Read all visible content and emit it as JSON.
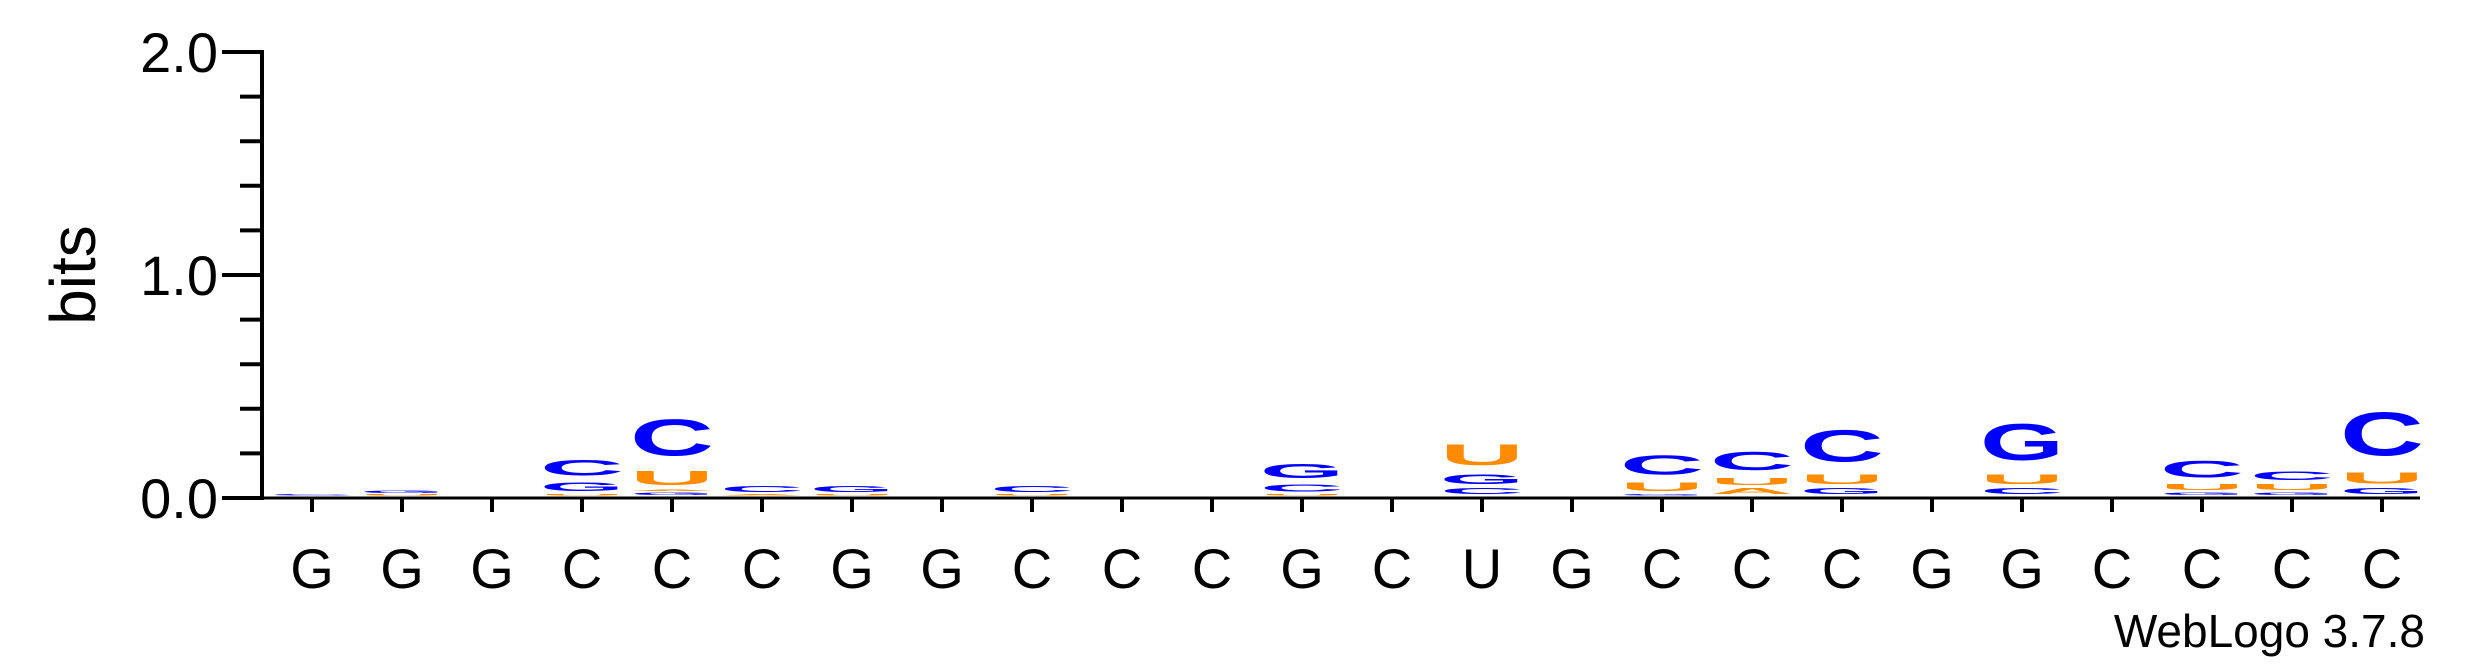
{
  "chart_data": {
    "type": "sequence-logo",
    "ylabel": "bits",
    "ylim": [
      0,
      2.0
    ],
    "yticks": [
      {
        "value": 0.0,
        "label": "0.0"
      },
      {
        "value": 1.0,
        "label": "1.0"
      },
      {
        "value": 2.0,
        "label": "2.0"
      }
    ],
    "colors": {
      "C": "#0000ff",
      "G": "#0000ff",
      "U": "#ff8c00",
      "A": "#ff8c00"
    },
    "positions": [
      {
        "label": "G",
        "stack": [
          {
            "letter": "C",
            "bits": 0.01
          }
        ]
      },
      {
        "label": "G",
        "stack": [
          {
            "letter": "U",
            "bits": 0.01
          },
          {
            "letter": "G",
            "bits": 0.02
          }
        ]
      },
      {
        "label": "G",
        "stack": []
      },
      {
        "label": "C",
        "stack": [
          {
            "letter": "U",
            "bits": 0.01
          },
          {
            "letter": "G",
            "bits": 0.06
          },
          {
            "letter": "C",
            "bits": 0.11
          }
        ]
      },
      {
        "label": "C",
        "stack": [
          {
            "letter": "G",
            "bits": 0.02
          },
          {
            "letter": "A",
            "bits": 0.01
          },
          {
            "letter": "U",
            "bits": 0.1
          },
          {
            "letter": "C",
            "bits": 0.26
          }
        ]
      },
      {
        "label": "C",
        "stack": [
          {
            "letter": "A",
            "bits": 0.01
          },
          {
            "letter": "C",
            "bits": 0.04
          }
        ]
      },
      {
        "label": "G",
        "stack": [
          {
            "letter": "U",
            "bits": 0.01
          },
          {
            "letter": "G",
            "bits": 0.04
          }
        ]
      },
      {
        "label": "G",
        "stack": []
      },
      {
        "label": "C",
        "stack": [
          {
            "letter": "U",
            "bits": 0.01
          },
          {
            "letter": "C",
            "bits": 0.04
          }
        ]
      },
      {
        "label": "C",
        "stack": []
      },
      {
        "label": "C",
        "stack": []
      },
      {
        "label": "G",
        "stack": [
          {
            "letter": "U",
            "bits": 0.01
          },
          {
            "letter": "C",
            "bits": 0.05
          },
          {
            "letter": "G",
            "bits": 0.1
          }
        ]
      },
      {
        "label": "C",
        "stack": []
      },
      {
        "label": "U",
        "stack": [
          {
            "letter": "C",
            "bits": 0.04
          },
          {
            "letter": "G",
            "bits": 0.07
          },
          {
            "letter": "U",
            "bits": 0.15
          }
        ]
      },
      {
        "label": "G",
        "stack": []
      },
      {
        "label": "C",
        "stack": [
          {
            "letter": "G",
            "bits": 0.01
          },
          {
            "letter": "U",
            "bits": 0.06
          },
          {
            "letter": "C",
            "bits": 0.14
          }
        ]
      },
      {
        "label": "C",
        "stack": [
          {
            "letter": "A",
            "bits": 0.04
          },
          {
            "letter": "U",
            "bits": 0.05
          },
          {
            "letter": "C",
            "bits": 0.13
          }
        ]
      },
      {
        "label": "C",
        "stack": [
          {
            "letter": "G",
            "bits": 0.04
          },
          {
            "letter": "U",
            "bits": 0.07
          },
          {
            "letter": "C",
            "bits": 0.23
          }
        ]
      },
      {
        "label": "G",
        "stack": []
      },
      {
        "label": "G",
        "stack": [
          {
            "letter": "C",
            "bits": 0.04
          },
          {
            "letter": "U",
            "bits": 0.07
          },
          {
            "letter": "G",
            "bits": 0.26
          }
        ]
      },
      {
        "label": "C",
        "stack": []
      },
      {
        "label": "C",
        "stack": [
          {
            "letter": "G",
            "bits": 0.02
          },
          {
            "letter": "U",
            "bits": 0.04
          },
          {
            "letter": "C",
            "bits": 0.12
          }
        ]
      },
      {
        "label": "C",
        "stack": [
          {
            "letter": "G",
            "bits": 0.02
          },
          {
            "letter": "U",
            "bits": 0.04
          },
          {
            "letter": "C",
            "bits": 0.06
          }
        ]
      },
      {
        "label": "C",
        "stack": [
          {
            "letter": "G",
            "bits": 0.04
          },
          {
            "letter": "U",
            "bits": 0.08
          },
          {
            "letter": "C",
            "bits": 0.31
          }
        ]
      }
    ],
    "credit": "WebLogo 3.7.8"
  }
}
